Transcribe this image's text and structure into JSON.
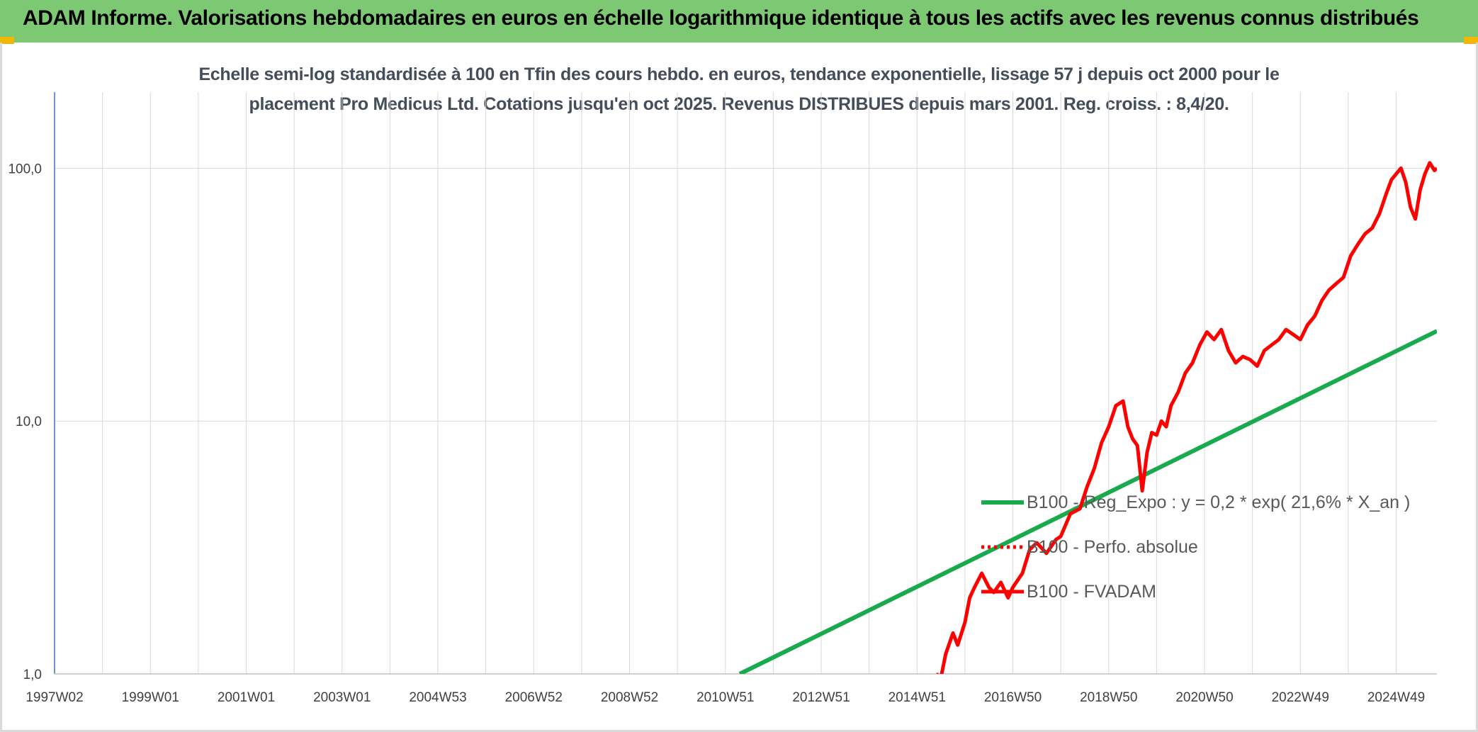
{
  "header": {
    "title": "ADAM Informe. Valorisations hebdomadaires en euros en échelle logarithmique identique à tous les actifs avec les revenus connus distribués"
  },
  "colors": {
    "header_bg": "#7dc873",
    "accent_corner": "#f2b705",
    "series_price": "#ff0000",
    "series_regression": "#1aaa4e",
    "grid": "#d9d9d9",
    "axis": "#4472c4"
  },
  "chart_data": {
    "type": "line",
    "title_lines": [
      "Echelle semi-log standardisée à 100 en Tfin des cours hebdo. en euros, tendance exponentielle, lissage 57 j depuis oct 2000 pour le",
      "placement Pro Medicus Ltd. Cotations jusqu'en oct 2025. Revenus DISTRIBUES depuis mars 2001. Reg. croiss. : 8,4/20."
    ],
    "yscale": "log",
    "ylim": [
      1,
      200
    ],
    "y_ticks": [
      1,
      10,
      100
    ],
    "y_tick_labels": [
      "1,0",
      "10,0",
      "100,0"
    ],
    "xlim": [
      1997.0,
      2025.85
    ],
    "x_ticks": [
      1997.0,
      1999.0,
      2001.0,
      2003.0,
      2005.0,
      2007.0,
      2009.0,
      2011.0,
      2013.0,
      2015.0,
      2017.0,
      2019.0,
      2021.0,
      2023.0,
      2025.0
    ],
    "x_tick_labels": [
      "1997W02",
      "1999W01",
      "2001W01",
      "2003W01",
      "2004W53",
      "2006W52",
      "2008W52",
      "2010W51",
      "2012W51",
      "2014W51",
      "2016W50",
      "2018W50",
      "2020W50",
      "2022W49",
      "2024W49"
    ],
    "grid": true,
    "legend_position": "center-right",
    "series": [
      {
        "name": "B100 - Reg_Expo : y = 0,2 * exp( 21,6% *  X_an )",
        "style": "solid-thick",
        "color": "#1aaa4e",
        "x": [
          2011.3,
          2025.85
        ],
        "y": [
          1.0,
          22.7
        ]
      },
      {
        "name": "B100 - Perfo. absolue",
        "style": "dotted",
        "color": "#ff0000",
        "x": [],
        "y": []
      },
      {
        "name": "B100 - FVADAM",
        "style": "solid",
        "color": "#ff0000",
        "x": [
          2015.4,
          2015.5,
          2015.6,
          2015.75,
          2015.85,
          2016.0,
          2016.1,
          2016.2,
          2016.35,
          2016.5,
          2016.6,
          2016.75,
          2016.9,
          2017.0,
          2017.2,
          2017.35,
          2017.5,
          2017.7,
          2017.9,
          2018.0,
          2018.2,
          2018.4,
          2018.55,
          2018.7,
          2018.85,
          2019.0,
          2019.15,
          2019.3,
          2019.4,
          2019.5,
          2019.6,
          2019.7,
          2019.8,
          2019.9,
          2020.0,
          2020.1,
          2020.2,
          2020.3,
          2020.45,
          2020.6,
          2020.75,
          2020.9,
          2021.05,
          2021.2,
          2021.35,
          2021.5,
          2021.65,
          2021.8,
          2021.95,
          2022.1,
          2022.25,
          2022.4,
          2022.55,
          2022.7,
          2022.85,
          2023.0,
          2023.15,
          2023.3,
          2023.45,
          2023.6,
          2023.75,
          2023.9,
          2024.05,
          2024.2,
          2024.35,
          2024.5,
          2024.65,
          2024.8,
          2024.9,
          2025.0,
          2025.1,
          2025.2,
          2025.3,
          2025.4,
          2025.5,
          2025.6,
          2025.7,
          2025.8,
          2025.85
        ],
        "y": [
          1.0,
          0.97,
          1.2,
          1.45,
          1.3,
          1.6,
          2.0,
          2.2,
          2.5,
          2.2,
          2.1,
          2.3,
          2.0,
          2.2,
          2.5,
          3.1,
          3.3,
          3.0,
          3.4,
          3.5,
          4.3,
          4.5,
          5.5,
          6.5,
          8.2,
          9.5,
          11.5,
          12.0,
          9.5,
          8.5,
          8.0,
          5.3,
          7.5,
          9.0,
          8.8,
          10.0,
          9.5,
          11.5,
          13.0,
          15.5,
          17.0,
          20.0,
          22.5,
          21.0,
          23.0,
          19.0,
          17.0,
          18.0,
          17.5,
          16.5,
          19.0,
          20.0,
          21.0,
          23.0,
          22.0,
          21.0,
          24.0,
          26.0,
          30.0,
          33.0,
          35.0,
          37.0,
          45.0,
          50.0,
          55.0,
          58.0,
          66.0,
          80.0,
          90.0,
          95.0,
          100.0,
          88.0,
          70.0,
          63.0,
          82.0,
          95.0,
          105.0,
          98.0,
          100.0
        ]
      }
    ]
  }
}
